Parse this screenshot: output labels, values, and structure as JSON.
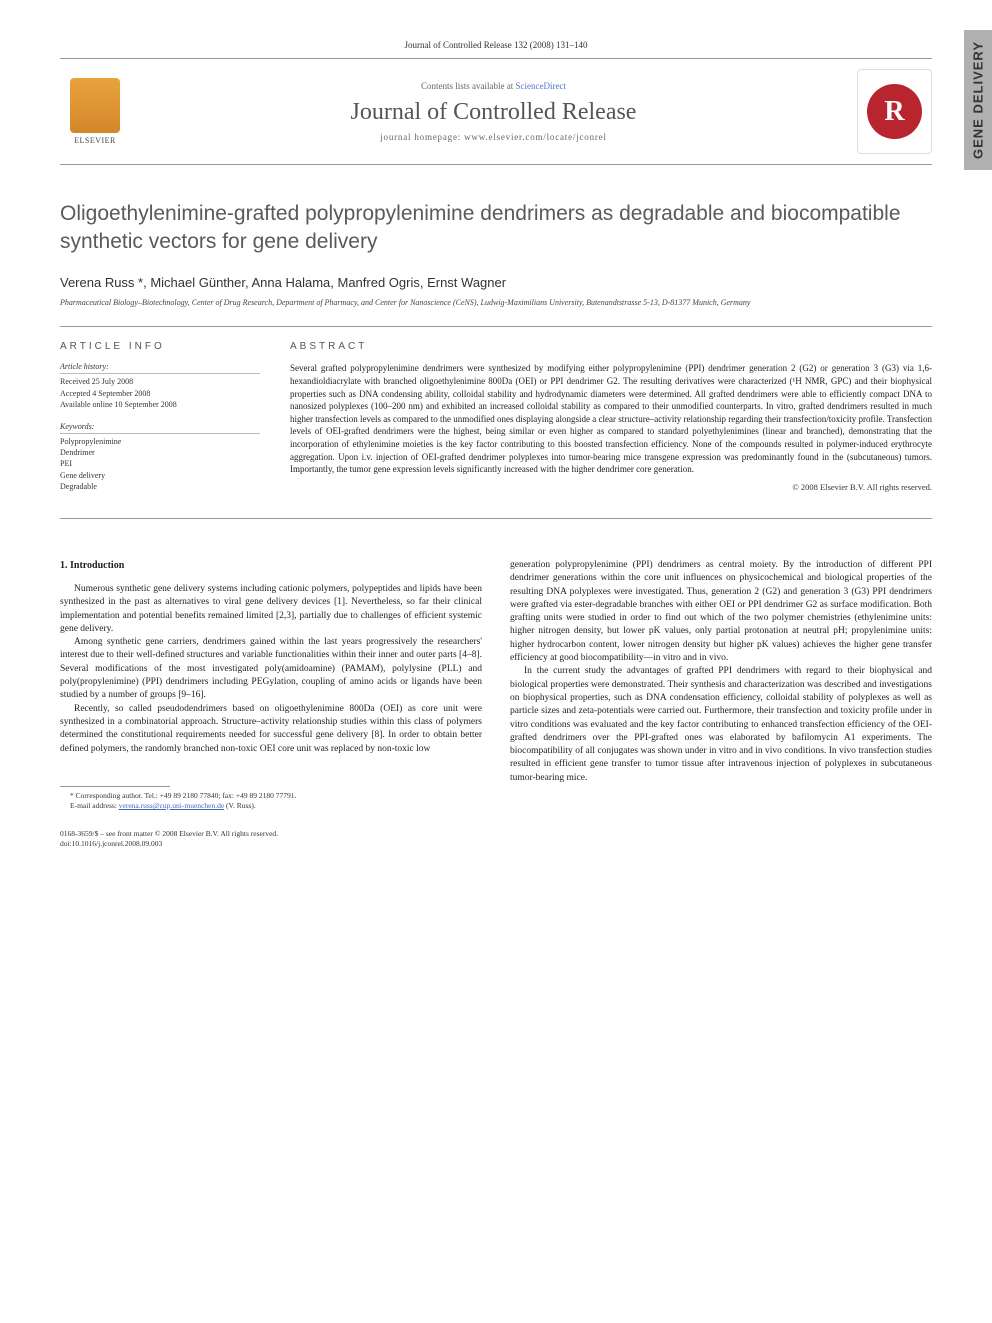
{
  "side_tab": "GENE DELIVERY",
  "citation": "Journal of Controlled Release 132 (2008) 131–140",
  "header": {
    "contents_prefix": "Contents lists available at ",
    "contents_link": "ScienceDirect",
    "journal_name": "Journal of Controlled Release",
    "homepage_prefix": "journal homepage: ",
    "homepage_url": "www.elsevier.com/locate/jconrel",
    "elsevier_label": "ELSEVIER",
    "logo_letter": "R"
  },
  "title": "Oligoethylenimine-grafted polypropylenimine dendrimers as degradable and biocompatible synthetic vectors for gene delivery",
  "authors": "Verena Russ *, Michael Günther, Anna Halama, Manfred Ogris, Ernst Wagner",
  "affiliation": "Pharmaceutical Biology–Biotechnology, Center of Drug Research, Department of Pharmacy, and Center for Nanoscience (CeNS), Ludwig-Maximilians University, Butenandtstrasse 5-13, D-81377 Munich, Germany",
  "info": {
    "heading": "ARTICLE INFO",
    "history_heading": "Article history:",
    "history": [
      "Received 25 July 2008",
      "Accepted 4 September 2008",
      "Available online 10 September 2008"
    ],
    "keywords_heading": "Keywords:",
    "keywords": [
      "Polypropylenimine",
      "Dendrimer",
      "PEI",
      "Gene delivery",
      "Degradable"
    ]
  },
  "abstract": {
    "heading": "ABSTRACT",
    "text": "Several grafted polypropylenimine dendrimers were synthesized by modifying either polypropylenimine (PPI) dendrimer generation 2 (G2) or generation 3 (G3) via 1,6-hexandioldiacrylate with branched oligoethylenimine 800Da (OEI) or PPI dendrimer G2. The resulting derivatives were characterized (¹H NMR, GPC) and their biophysical properties such as DNA condensing ability, colloidal stability and hydrodynamic diameters were determined. All grafted dendrimers were able to efficiently compact DNA to nanosized polyplexes (100–200 nm) and exhibited an increased colloidal stability as compared to their unmodified counterparts. In vitro, grafted dendrimers resulted in much higher transfection levels as compared to the unmodified ones displaying alongside a clear structure–activity relationship regarding their transfection/toxicity profile. Transfection levels of OEI-grafted dendrimers were the highest, being similar or even higher as compared to standard polyethylenimines (linear and branched), demonstrating that the incorporation of ethylenimine moieties is the key factor contributing to this boosted transfection efficiency. None of the compounds resulted in polymer-induced erythrocyte aggregation. Upon i.v. injection of OEI-grafted dendrimer polyplexes into tumor-bearing mice transgene expression was predominantly found in the (subcutaneous) tumors. Importantly, the tumor gene expression levels significantly increased with the higher dendrimer core generation.",
    "copyright": "© 2008 Elsevier B.V. All rights reserved."
  },
  "body": {
    "section_heading": "1. Introduction",
    "left_paragraphs": [
      "Numerous synthetic gene delivery systems including cationic polymers, polypeptides and lipids have been synthesized in the past as alternatives to viral gene delivery devices [1]. Nevertheless, so far their clinical implementation and potential benefits remained limited [2,3], partially due to challenges of efficient systemic gene delivery.",
      "Among synthetic gene carriers, dendrimers gained within the last years progressively the researchers' interest due to their well-defined structures and variable functionalities within their inner and outer parts [4–8]. Several modifications of the most investigated poly(amidoamine) (PAMAM), polylysine (PLL) and poly(propylenimine) (PPI) dendrimers including PEGylation, coupling of amino acids or ligands have been studied by a number of groups [9–16].",
      "Recently, so called pseudodendrimers based on oligoethylenimine 800Da (OEI) as core unit were synthesized in a combinatorial approach. Structure–activity relationship studies within this class of polymers determined the constitutional requirements needed for successful gene delivery [8]. In order to obtain better defined polymers, the randomly branched non-toxic OEI core unit was replaced by non-toxic low"
    ],
    "right_paragraphs": [
      "generation polypropylenimine (PPI) dendrimers as central moiety. By the introduction of different PPI dendrimer generations within the core unit influences on physicochemical and biological properties of the resulting DNA polyplexes were investigated. Thus, generation 2 (G2) and generation 3 (G3) PPI dendrimers were grafted via ester-degradable branches with either OEI or PPI dendrimer G2 as surface modification. Both grafting units were studied in order to find out which of the two polymer chemistries (ethylenimine units: higher nitrogen density, but lower pK values, only partial protonation at neutral pH; propylenimine units: higher hydrocarbon content, lower nitrogen density but higher pK values) achieves the higher gene transfer efficiency at good biocompatibility—in vitro and in vivo.",
      "In the current study the advantages of grafted PPI dendrimers with regard to their biophysical and biological properties were demonstrated. Their synthesis and characterization was described and investigations on biophysical properties, such as DNA condensation efficiency, colloidal stability of polyplexes as well as particle sizes and zeta-potentials were carried out. Furthermore, their transfection and toxicity profile under in vitro conditions was evaluated and the key factor contributing to enhanced transfection efficiency of the OEI-grafted dendrimers over the PPI-grafted ones was elaborated by bafilomycin A1 experiments. The biocompatibility of all conjugates was shown under in vitro and in vivo conditions. In vivo transfection studies resulted in efficient gene transfer to tumor tissue after intravenous injection of polyplexes in subcutaneous tumor-bearing mice."
    ]
  },
  "footnote": {
    "corresponding": "* Corresponding author. Tel.: +49 89 2180 77840; fax: +49 89 2180 77791.",
    "email_label": "E-mail address: ",
    "email": "verena.russ@cup.uni-muenchen.de",
    "email_suffix": " (V. Russ)."
  },
  "footer": {
    "line1": "0168-3659/$ – see front matter © 2008 Elsevier B.V. All rights reserved.",
    "line2": "doi:10.1016/j.jconrel.2008.09.003"
  },
  "colors": {
    "text": "#333333",
    "link": "#4466bb",
    "title_gray": "#5a5a5a",
    "journal_red": "#b8252f",
    "elsevier_orange": "#e8a33d",
    "side_tab_bg": "#b0b0b0"
  }
}
